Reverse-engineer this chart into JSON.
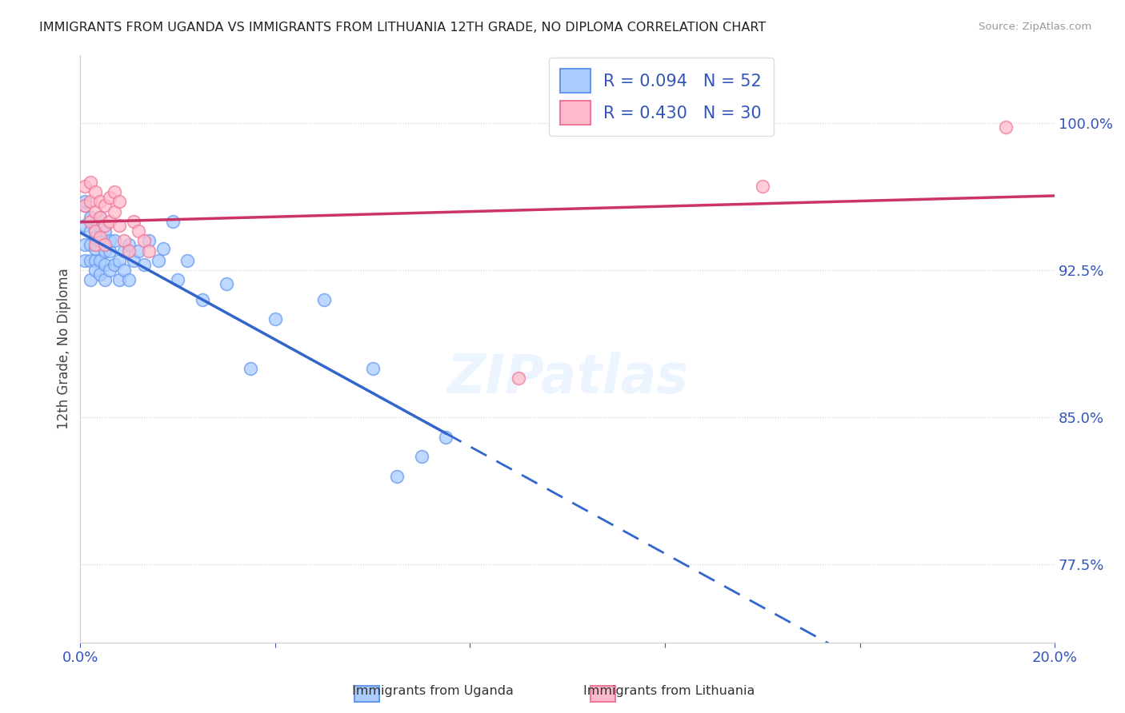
{
  "title": "IMMIGRANTS FROM UGANDA VS IMMIGRANTS FROM LITHUANIA 12TH GRADE, NO DIPLOMA CORRELATION CHART",
  "source": "Source: ZipAtlas.com",
  "ylabel": "12th Grade, No Diploma",
  "y_ticks": [
    0.775,
    0.85,
    0.925,
    1.0
  ],
  "y_tick_labels": [
    "77.5%",
    "85.0%",
    "92.5%",
    "100.0%"
  ],
  "xlim": [
    0.0,
    0.2
  ],
  "ylim": [
    0.735,
    1.035
  ],
  "uganda_color": "#6699ee",
  "uganda_color_fill": "#aaccff",
  "lithuania_color": "#ee7799",
  "lithuania_color_fill": "#ffbbcc",
  "trend_blue": "#3366cc",
  "trend_pink": "#cc3366",
  "legend_label_uganda": "Immigrants from Uganda",
  "legend_label_lithuania": "Immigrants from Lithuania",
  "uganda_x": [
    0.001,
    0.001,
    0.001,
    0.001,
    0.001,
    0.002,
    0.002,
    0.002,
    0.002,
    0.002,
    0.003,
    0.003,
    0.003,
    0.003,
    0.003,
    0.004,
    0.004,
    0.004,
    0.004,
    0.005,
    0.005,
    0.005,
    0.005,
    0.006,
    0.006,
    0.006,
    0.007,
    0.007,
    0.008,
    0.008,
    0.009,
    0.009,
    0.01,
    0.01,
    0.011,
    0.012,
    0.013,
    0.014,
    0.016,
    0.017,
    0.019,
    0.02,
    0.022,
    0.025,
    0.03,
    0.035,
    0.04,
    0.05,
    0.06,
    0.065,
    0.07,
    0.075
  ],
  "uganda_y": [
    0.958,
    0.948,
    0.938,
    0.93,
    0.96,
    0.945,
    0.938,
    0.93,
    0.952,
    0.92,
    0.945,
    0.93,
    0.942,
    0.925,
    0.936,
    0.94,
    0.93,
    0.952,
    0.923,
    0.935,
    0.928,
    0.92,
    0.945,
    0.935,
    0.925,
    0.94,
    0.928,
    0.94,
    0.93,
    0.92,
    0.935,
    0.925,
    0.938,
    0.92,
    0.93,
    0.935,
    0.928,
    0.94,
    0.93,
    0.936,
    0.95,
    0.92,
    0.93,
    0.91,
    0.918,
    0.875,
    0.9,
    0.91,
    0.875,
    0.82,
    0.83,
    0.84
  ],
  "lithuania_x": [
    0.001,
    0.001,
    0.002,
    0.002,
    0.002,
    0.003,
    0.003,
    0.003,
    0.003,
    0.004,
    0.004,
    0.004,
    0.005,
    0.005,
    0.005,
    0.006,
    0.006,
    0.007,
    0.007,
    0.008,
    0.008,
    0.009,
    0.01,
    0.011,
    0.012,
    0.013,
    0.014,
    0.09,
    0.14,
    0.19
  ],
  "lithuania_y": [
    0.968,
    0.958,
    0.97,
    0.96,
    0.95,
    0.965,
    0.955,
    0.945,
    0.938,
    0.96,
    0.952,
    0.942,
    0.958,
    0.948,
    0.938,
    0.962,
    0.95,
    0.965,
    0.955,
    0.96,
    0.948,
    0.94,
    0.935,
    0.95,
    0.945,
    0.94,
    0.935,
    0.87,
    0.968,
    0.998
  ],
  "marker_size": 130,
  "background_color": "#ffffff",
  "title_fontsize": 11.5,
  "axis_label_color": "#3355bb",
  "source_color": "#999999",
  "ug_trend_intercept": 0.926,
  "ug_trend_slope": 0.2,
  "lt_trend_intercept": 0.942,
  "lt_trend_slope": 0.33
}
